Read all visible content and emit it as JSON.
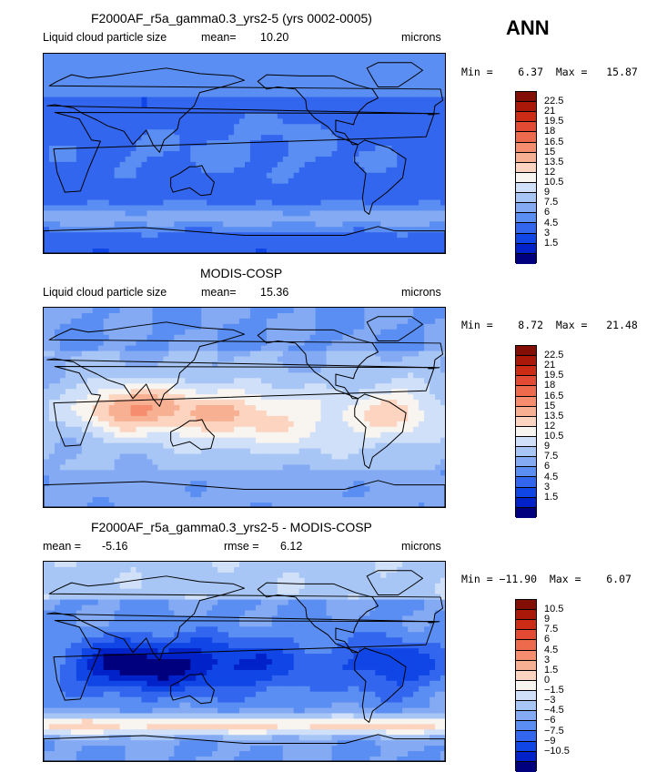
{
  "season": "ANN",
  "palette": [
    "#00007f",
    "#0022c8",
    "#1045e6",
    "#3366ee",
    "#5a8ef2",
    "#84aaf3",
    "#a8c6f5",
    "#cfe0f8",
    "#f8f4ef",
    "#fcd4c0",
    "#f8b093",
    "#f58d6e",
    "#ee6a4d",
    "#e34a33",
    "#cc2c16",
    "#a91808",
    "#820e04"
  ],
  "panels": [
    {
      "title": "F2000AF_r5a_gamma0.3_yrs2-5 (yrs 0002-0005)",
      "left_label": "Liquid cloud particle size",
      "mean_label": "mean=",
      "mean_value": "10.20",
      "units": "microns",
      "stats": "Min =    6.37  Max =   15.87",
      "levels": [
        "22.5",
        "21",
        "19.5",
        "18",
        "16.5",
        "15",
        "13.5",
        "12",
        "10.5",
        "9",
        "7.5",
        "6",
        "4.5",
        "3",
        "1.5"
      ],
      "field": "model"
    },
    {
      "title": "MODIS-COSP",
      "left_label": "Liquid cloud particle size",
      "mean_label": "mean=",
      "mean_value": "15.36",
      "units": "microns",
      "stats": "Min =    8.72  Max =   21.48",
      "levels": [
        "22.5",
        "21",
        "19.5",
        "18",
        "16.5",
        "15",
        "13.5",
        "12",
        "10.5",
        "9",
        "7.5",
        "6",
        "4.5",
        "3",
        "1.5"
      ],
      "field": "obs"
    },
    {
      "title": "F2000AF_r5a_gamma0.3_yrs2-5 - MODIS-COSP",
      "left_label": "mean =",
      "mean_label": "",
      "mean_value": "-5.16",
      "rmse_label": "rmse =",
      "rmse_value": "6.12",
      "units": "microns",
      "stats": "Min = −11.90  Max =    6.07",
      "levels": [
        "10.5",
        "9",
        "7.5",
        "6",
        "4.5",
        "3",
        "1.5",
        "0",
        "−1.5",
        "−3",
        "−4.5",
        "−6",
        "−7.5",
        "−9",
        "−10.5"
      ],
      "field": "diff"
    }
  ]
}
